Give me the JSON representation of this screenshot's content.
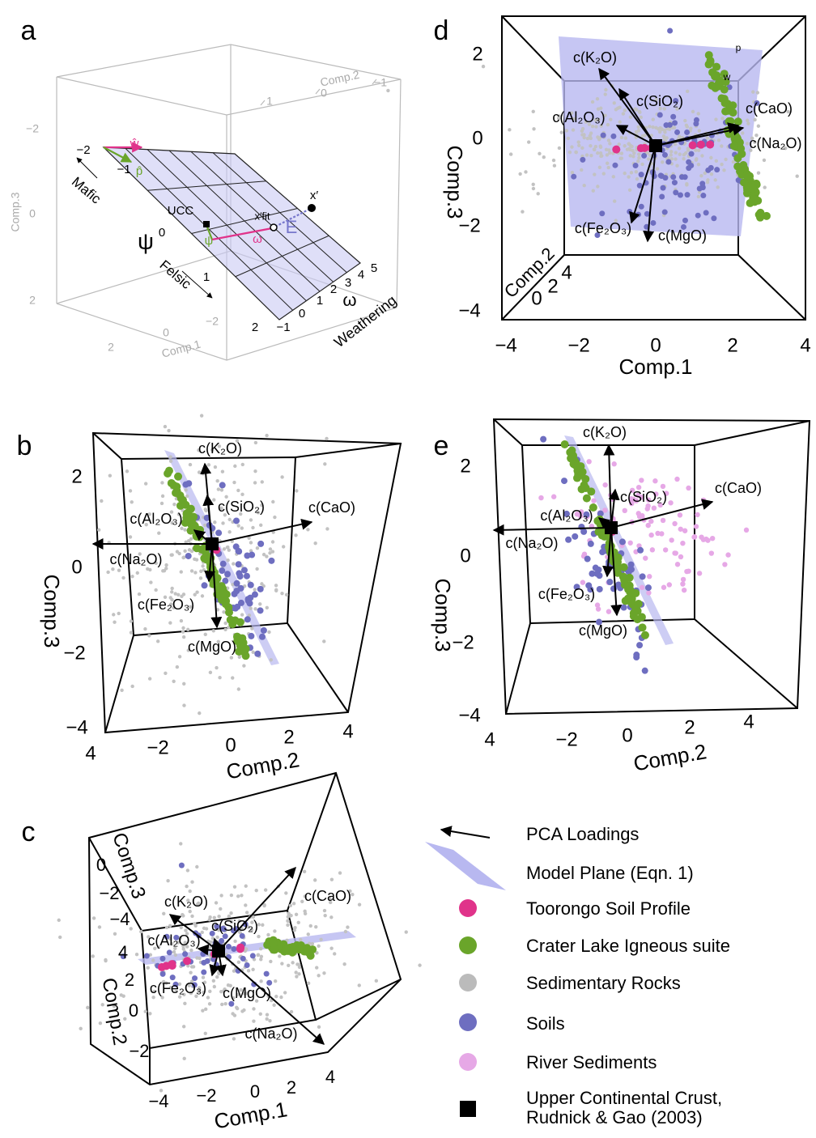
{
  "panels": {
    "a": {
      "label": "a",
      "texts": [
        "Comp.2",
        "1",
        "0",
        "−1",
        "Comp.3",
        "−2",
        "0",
        "2",
        "2",
        "0",
        "−2",
        "Comp.1",
        "−2",
        "−1",
        "0",
        "1",
        "2",
        "−1",
        "0",
        "1",
        "2",
        "3",
        "4",
        "5",
        "ω",
        "Weathering",
        "Mafic",
        "Felsic",
        "ψ",
        "UCC",
        "ψ",
        "ω",
        "x′",
        "x′fit",
        "E",
        "ŵ",
        "p̂"
      ]
    },
    "b": {
      "label": "b",
      "texts": [
        "2",
        "0",
        "−2",
        "−4",
        "Comp.3",
        "4",
        "−2",
        "0",
        "2",
        "4",
        "Comp.2",
        "c(K₂O)",
        "c(SiO₂)",
        "c(Al₂O₃)",
        "c(CaO)",
        "c(Na₂O)",
        "c(Fe₂O₃)",
        "c(MgO)"
      ]
    },
    "c": {
      "label": "c",
      "texts": [
        "Comp.3",
        "0",
        "−2",
        "−4",
        "Comp.2",
        "4",
        "2",
        "0",
        "−2",
        "−4",
        "−2",
        "0",
        "2",
        "4",
        "Comp.1",
        "c(K₂O)",
        "c(SiO₂)",
        "c(Al₂O₃)",
        "c(CaO)",
        "c(Fe₂O₃)",
        "c(MgO)",
        "c(Na₂O)"
      ]
    },
    "d": {
      "label": "d",
      "texts": [
        "2",
        "0",
        "−2",
        "−4",
        "Comp.3",
        "−4",
        "−2",
        "0",
        "2",
        "4",
        "Comp.1",
        "Comp.2",
        "0",
        "2",
        "4",
        "c(K₂O)",
        "c(SiO₂)",
        "c(Al₂O₃)",
        "c(CaO)",
        "c(Na₂O)",
        "c(Fe₂O₃)",
        "c(MgO)",
        "p",
        "w"
      ]
    },
    "e": {
      "label": "e",
      "texts": [
        "2",
        "0",
        "−2",
        "−4",
        "Comp.3",
        "4",
        "−2",
        "0",
        "2",
        "4",
        "Comp.2",
        "c(K₂O)",
        "c(SiO₂)",
        "c(Al₂O₃)",
        "c(CaO)",
        "c(Na₂O)",
        "c(Fe₂O₃)",
        "c(MgO)"
      ]
    }
  },
  "legend": {
    "entries": [
      "PCA Loadings",
      "Model Plane (Eqn. 1)",
      "Toorongo Soil Profile",
      "Crater Lake Igneous suite",
      "Sedimentary Rocks",
      "Soils",
      "River Sediments",
      "Upper Continental Crust,",
      "Rudnick & Gao (2003)"
    ]
  }
}
